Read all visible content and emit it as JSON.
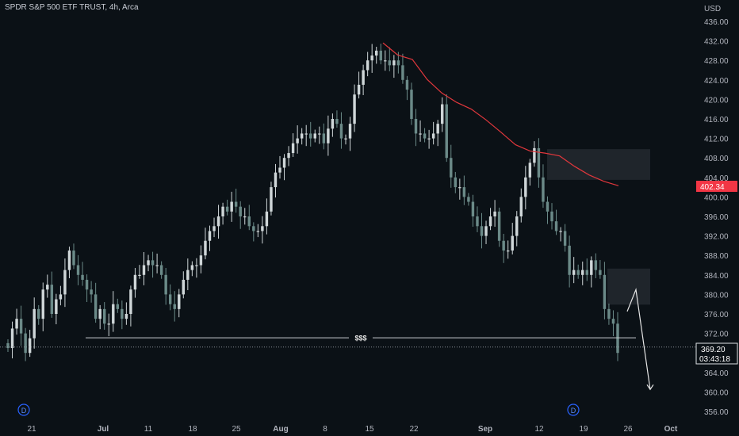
{
  "title": "SPDR S&P 500 ETF TRUST, 4h, Arca",
  "price_axis": {
    "currency": "USD",
    "ticks": [
      "436.00",
      "432.00",
      "428.00",
      "424.00",
      "420.00",
      "416.00",
      "412.00",
      "408.00",
      "404.00",
      "400.00",
      "396.00",
      "392.00",
      "388.00",
      "384.00",
      "380.00",
      "376.00",
      "372.00",
      "368.00",
      "364.00",
      "360.00",
      "356.00"
    ]
  },
  "time_axis": {
    "ticks": [
      "21",
      "Jul",
      "11",
      "18",
      "25",
      "Aug",
      "8",
      "15",
      "22",
      "Sep",
      "12",
      "19",
      "26",
      "Oct"
    ]
  },
  "labels": {
    "liquidity": "$$$",
    "ma_price": "402.34",
    "last_price": "369.20",
    "countdown": "03:43:18",
    "dividend_marker": "D"
  },
  "colors": {
    "background": "#0b1116",
    "candle_up": "#cfd6d8",
    "candle_down": "#6b8a88",
    "ma_line": "#e0373c",
    "ma_label_bg": "#f23645",
    "zone_fill": "#1f252b",
    "annotation": "#e6e6e6",
    "dividend": "#2962ff"
  },
  "chart_data": {
    "type": "candlestick",
    "symbol": "SPY",
    "interval": "4h",
    "y_range": [
      355,
      438
    ],
    "closes": [
      369,
      373,
      375,
      372,
      368,
      371,
      377,
      375,
      381,
      382,
      376,
      379,
      380,
      385,
      389,
      386,
      384,
      383,
      381,
      380,
      375,
      377,
      374,
      374,
      378,
      377,
      375,
      376,
      381,
      384,
      384,
      386,
      387,
      386,
      386,
      384,
      380,
      378,
      377,
      380,
      383,
      385,
      386,
      386,
      388,
      391,
      393,
      394,
      396,
      398,
      397,
      399,
      398,
      396,
      396,
      394,
      393,
      393,
      394,
      397,
      402,
      405,
      406,
      408,
      409,
      411,
      412,
      413,
      413,
      412,
      413,
      413,
      411,
      414,
      416,
      415,
      412,
      412,
      415,
      421,
      423,
      426,
      428,
      429,
      430,
      428,
      428,
      427,
      428,
      427,
      424,
      422,
      416,
      413,
      413,
      412,
      412,
      413,
      415,
      419,
      408,
      404,
      402,
      402,
      400,
      399,
      396,
      394,
      392,
      394,
      396,
      397,
      391,
      389,
      389,
      392,
      396,
      400,
      404,
      407,
      410,
      404,
      399,
      397,
      395,
      393,
      393,
      390,
      384,
      385,
      384,
      385,
      384,
      387,
      385,
      384,
      377,
      375,
      374,
      368
    ],
    "moving_average": {
      "name": "",
      "values": [
        431.6,
        429.1,
        428.2,
        424.1,
        421.3,
        419.4,
        418.0,
        415.8,
        413.3,
        410.7,
        409.4,
        409.0,
        408.4,
        406.3,
        404.5,
        403.2,
        402.3
      ]
    },
    "zones": [
      {
        "low": 403.5,
        "high": 409.8
      },
      {
        "low": 377.9,
        "high": 385.3
      }
    ],
    "liquidity_level": 371.1,
    "last_price": 369.2,
    "ma_last": 402.34,
    "projection": [
      376.5,
      381.0,
      360.5
    ]
  }
}
